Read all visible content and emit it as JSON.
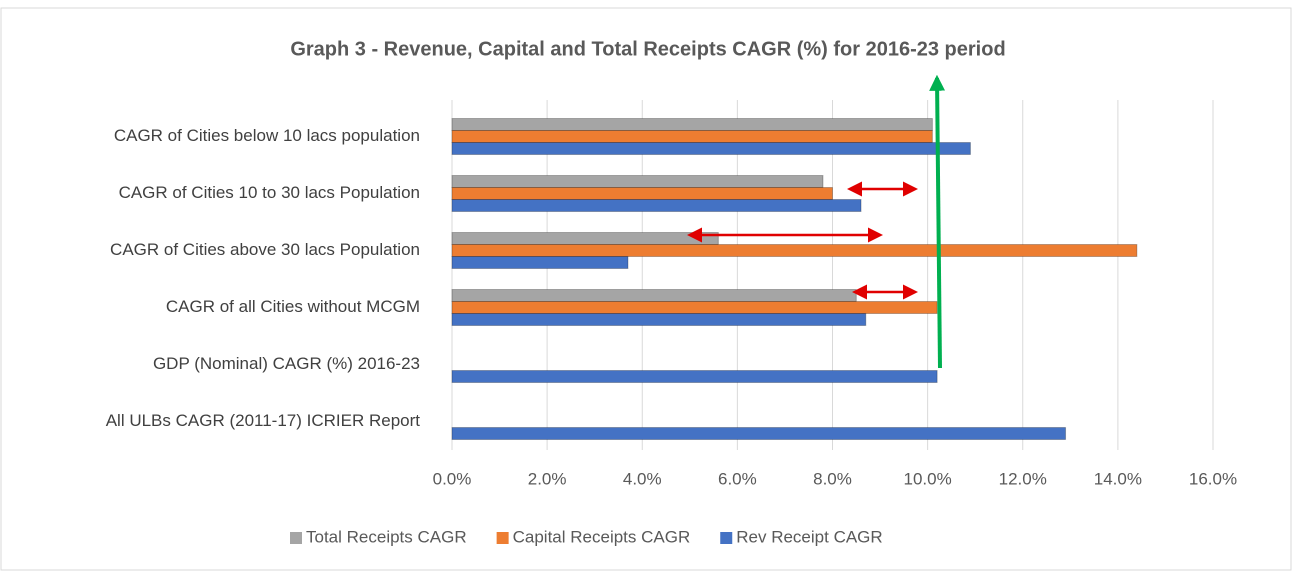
{
  "chart_data": {
    "type": "bar",
    "orientation": "horizontal",
    "title": "Graph 3 - Revenue, Capital and Total Receipts CAGR (%) for 2016-23 period",
    "categories": [
      "CAGR of Cities below 10 lacs population",
      "CAGR of Cities 10 to 30 lacs Population",
      "CAGR of Cities above 30 lacs Population",
      "CAGR of all Cities without MCGM",
      "GDP (Nominal) CAGR (%) 2016-23",
      "All ULBs CAGR (2011-17) ICRIER Report"
    ],
    "series": [
      {
        "name": "Total Receipts CAGR",
        "color": "#a5a5a5",
        "values": [
          10.1,
          7.8,
          5.6,
          8.5,
          null,
          null
        ]
      },
      {
        "name": "Capital Receipts CAGR",
        "color": "#ed7d31",
        "values": [
          10.1,
          8.0,
          14.4,
          10.2,
          null,
          null
        ]
      },
      {
        "name": "Rev Receipt CAGR",
        "color": "#4472c4",
        "values": [
          10.9,
          8.6,
          3.7,
          8.7,
          10.2,
          12.9
        ]
      }
    ],
    "xlim": [
      0,
      16
    ],
    "xticks": [
      {
        "value": 0,
        "label": "0.0%"
      },
      {
        "value": 2,
        "label": "2.0%"
      },
      {
        "value": 4,
        "label": "4.0%"
      },
      {
        "value": 6,
        "label": "6.0%"
      },
      {
        "value": 8,
        "label": "8.0%"
      },
      {
        "value": 10,
        "label": "10.0%"
      },
      {
        "value": 12,
        "label": "12.0%"
      },
      {
        "value": 14,
        "label": "14.0%"
      },
      {
        "value": 16,
        "label": "16.0%"
      }
    ],
    "grid": true,
    "legend": "bottom"
  }
}
